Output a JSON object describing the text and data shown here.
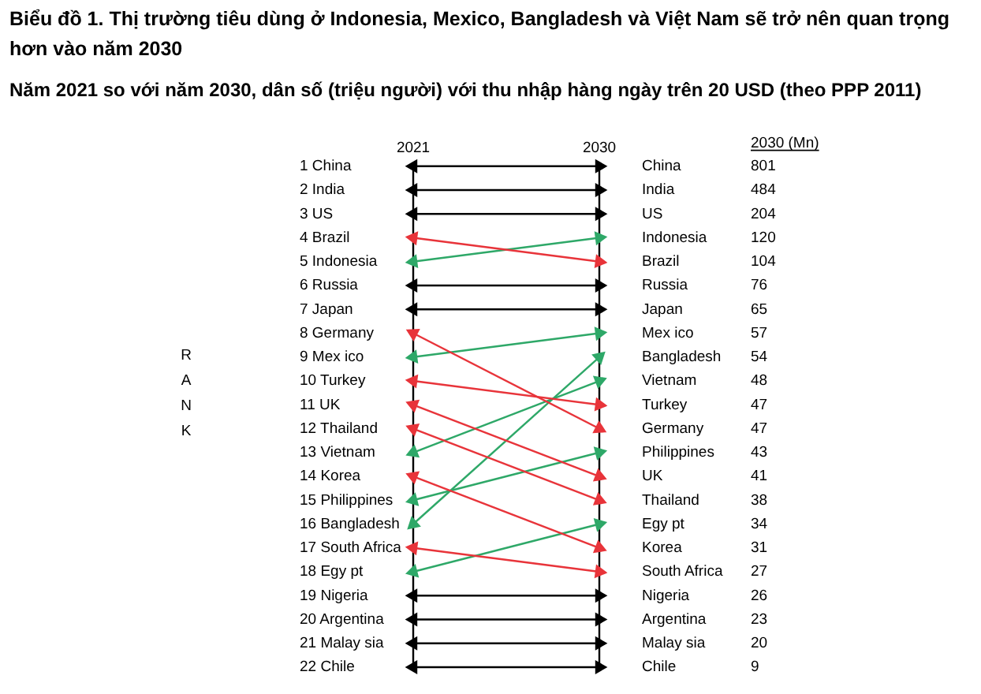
{
  "chart_data": {
    "type": "line",
    "title": "Biểu đồ 1. Thị trường tiêu dùng ở Indonesia, Mexico, Bangladesh và Việt Nam sẽ trở nên quan trọng hơn vào năm 2030",
    "subtitle": "Năm 2021 so với năm 2030, dân số (triệu người) với thu nhập hàng ngày trên 20 USD (theo PPP 2011)",
    "categories": [
      "2021",
      "2030"
    ],
    "marker": "triangle",
    "ref_lines": [
      {
        "axis": "x",
        "value": "2021"
      },
      {
        "axis": "x",
        "value": "2030"
      }
    ],
    "ylim": [
      22,
      1
    ],
    "yticks": [
      {
        "value": 1,
        "label": "1 China"
      },
      {
        "value": 2,
        "label": "2 India"
      },
      {
        "value": 3,
        "label": "3 US"
      },
      {
        "value": 4,
        "label": "4 Brazil"
      },
      {
        "value": 5,
        "label": "5 Indonesia"
      },
      {
        "value": 6,
        "label": "6 Russia"
      },
      {
        "value": 7,
        "label": "7 Japan"
      },
      {
        "value": 8,
        "label": "8 Germany"
      },
      {
        "value": 9,
        "label": "9 Mex ico"
      },
      {
        "value": 10,
        "label": "10 Turkey"
      },
      {
        "value": 11,
        "label": "11 UK"
      },
      {
        "value": 12,
        "label": "12 Thailand"
      },
      {
        "value": 13,
        "label": "13 Vietnam"
      },
      {
        "value": 14,
        "label": "14 Korea"
      },
      {
        "value": 15,
        "label": "15 Philippines"
      },
      {
        "value": 16,
        "label": "16 Bangladesh"
      },
      {
        "value": 17,
        "label": "17 South Africa"
      },
      {
        "value": 18,
        "label": "18 Egy pt"
      },
      {
        "value": 19,
        "label": "19 Nigeria"
      },
      {
        "value": 20,
        "label": "20 Argentina"
      },
      {
        "value": 21,
        "label": "21 Malay sia"
      },
      {
        "value": 22,
        "label": "22 Chile"
      }
    ],
    "annotations": [
      "RANK",
      "2030 (Mn)",
      "801",
      "484",
      "204",
      "120",
      "104",
      "76",
      "65",
      "57",
      "54",
      "48",
      "47",
      "47",
      "43",
      "41",
      "38",
      "34",
      "31",
      "27",
      "26",
      "23",
      "20",
      "9"
    ],
    "series": [
      {
        "name": "China",
        "color": "#000000",
        "values": [
          1,
          1
        ]
      },
      {
        "name": "India",
        "color": "#000000",
        "values": [
          2,
          2
        ]
      },
      {
        "name": "US",
        "color": "#000000",
        "values": [
          3,
          3
        ]
      },
      {
        "name": "Brazil",
        "color": "#e8343a",
        "values": [
          4,
          5
        ]
      },
      {
        "name": "Indonesia",
        "color": "#2ea868",
        "values": [
          5,
          4
        ]
      },
      {
        "name": "Russia",
        "color": "#000000",
        "values": [
          6,
          6
        ]
      },
      {
        "name": "Japan",
        "color": "#000000",
        "values": [
          7,
          7
        ]
      },
      {
        "name": "Germany",
        "color": "#e8343a",
        "values": [
          8,
          12
        ]
      },
      {
        "name": "Mex ico",
        "color": "#2ea868",
        "values": [
          9,
          8
        ]
      },
      {
        "name": "Turkey",
        "color": "#e8343a",
        "values": [
          10,
          11
        ]
      },
      {
        "name": "UK",
        "color": "#e8343a",
        "values": [
          11,
          14
        ]
      },
      {
        "name": "Thailand",
        "color": "#e8343a",
        "values": [
          12,
          15
        ]
      },
      {
        "name": "Vietnam",
        "color": "#2ea868",
        "values": [
          13,
          10
        ]
      },
      {
        "name": "Korea",
        "color": "#e8343a",
        "values": [
          14,
          17
        ]
      },
      {
        "name": "Philippines",
        "color": "#2ea868",
        "values": [
          15,
          13
        ]
      },
      {
        "name": "Bangladesh",
        "color": "#2ea868",
        "values": [
          16,
          9
        ]
      },
      {
        "name": "South Africa",
        "color": "#e8343a",
        "values": [
          17,
          18
        ]
      },
      {
        "name": "Egy pt",
        "color": "#2ea868",
        "values": [
          18,
          16
        ]
      },
      {
        "name": "Nigeria",
        "color": "#000000",
        "values": [
          19,
          19
        ]
      },
      {
        "name": "Argentina",
        "color": "#000000",
        "values": [
          20,
          20
        ]
      },
      {
        "name": "Malay sia",
        "color": "#000000",
        "values": [
          21,
          21
        ]
      },
      {
        "name": "Chile",
        "color": "#000000",
        "values": [
          22,
          22
        ]
      }
    ]
  }
}
